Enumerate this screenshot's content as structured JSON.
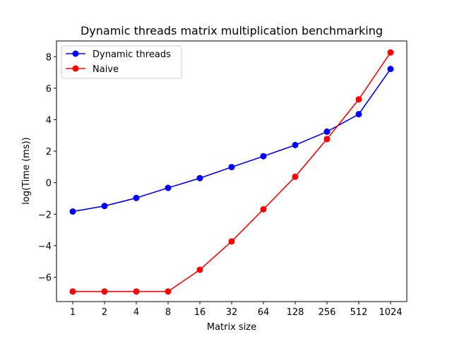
{
  "chart_data": {
    "type": "line",
    "title": "Dynamic threads matrix multiplication benchmarking",
    "xlabel": "Matrix size",
    "ylabel": "log(Time (ms))",
    "categories": [
      "1",
      "2",
      "4",
      "8",
      "16",
      "32",
      "64",
      "128",
      "256",
      "512",
      "1024"
    ],
    "ylim": [
      -7.55,
      9.0
    ],
    "yticks": [
      -6,
      -4,
      -2,
      0,
      2,
      4,
      6,
      8
    ],
    "ytick_labels": [
      "−6",
      "−4",
      "−2",
      "0",
      "2",
      "4",
      "6",
      "8"
    ],
    "grid": false,
    "legend": "top-left",
    "series": [
      {
        "name": "Dynamic threads",
        "color": "#0000ff",
        "values": [
          -1.83,
          -1.48,
          -0.97,
          -0.33,
          0.29,
          0.99,
          1.68,
          2.39,
          3.24,
          4.35,
          7.22
        ]
      },
      {
        "name": "Naive",
        "color": "#ff0000",
        "values": [
          -6.91,
          -6.91,
          -6.91,
          -6.91,
          -5.53,
          -3.73,
          -1.69,
          0.38,
          2.77,
          5.29,
          8.27
        ]
      }
    ]
  }
}
